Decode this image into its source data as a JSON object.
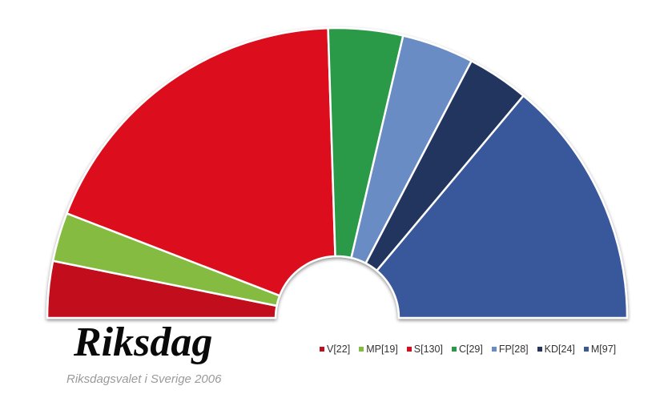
{
  "chart_data": {
    "type": "pie",
    "shape": "semicircle-parliament",
    "title": "Riksdag",
    "subtitle": "Riksdagsvalet i Sverige 2006",
    "legend_position": "bottom-right",
    "series": [
      {
        "name": "V",
        "label": "V[22]",
        "value": 22,
        "color": "#c10f1f"
      },
      {
        "name": "MP",
        "label": "MP[19]",
        "value": 19,
        "color": "#84bb41"
      },
      {
        "name": "S",
        "label": "S[130]",
        "value": 130,
        "color": "#dc0a1e"
      },
      {
        "name": "C",
        "label": "C[29]",
        "value": 29,
        "color": "#2b9a48"
      },
      {
        "name": "FP",
        "label": "FP[28]",
        "value": 28,
        "color": "#6a8cc5"
      },
      {
        "name": "KD",
        "label": "KD[24]",
        "value": 24,
        "color": "#22365e"
      },
      {
        "name": "M",
        "label": "M[97]",
        "value": 97,
        "color": "#39599b"
      }
    ]
  }
}
